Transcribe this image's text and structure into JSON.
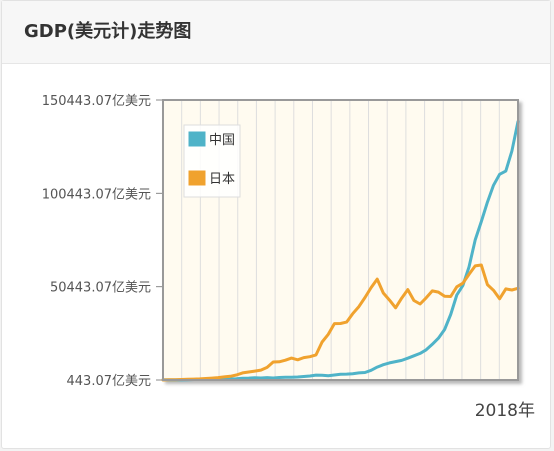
{
  "header": {
    "title": "GDP(美元计)走势图"
  },
  "chart_data": {
    "type": "line",
    "ylim": [
      443.07,
      150443.07
    ],
    "ytick_labels": [
      "150443.07亿美元",
      "100443.07亿美元",
      "50443.07亿美元",
      "443.07亿美元"
    ],
    "ytick_values": [
      150443.07,
      100443.07,
      50443.07,
      443.07
    ],
    "xtick_labels": [
      "2018年"
    ],
    "grid": true,
    "legend_position": "top-left",
    "x": [
      1960,
      1961,
      1962,
      1963,
      1964,
      1965,
      1966,
      1967,
      1968,
      1969,
      1970,
      1971,
      1972,
      1973,
      1974,
      1975,
      1976,
      1977,
      1978,
      1979,
      1980,
      1981,
      1982,
      1983,
      1984,
      1985,
      1986,
      1987,
      1988,
      1989,
      1990,
      1991,
      1992,
      1993,
      1994,
      1995,
      1996,
      1997,
      1998,
      1999,
      2000,
      2001,
      2002,
      2003,
      2004,
      2005,
      2006,
      2007,
      2008,
      2009,
      2010,
      2011,
      2012,
      2013,
      2014,
      2015,
      2016,
      2017,
      2018
    ],
    "series": [
      {
        "name": "中国",
        "color": "#4fb3c8",
        "values": [
          597,
          500,
          472,
          507,
          594,
          704,
          767,
          727,
          708,
          797,
          926,
          998,
          1136,
          1387,
          1442,
          1634,
          1539,
          1749,
          1495,
          1783,
          1911,
          1958,
          2050,
          2310,
          2597,
          3094,
          3008,
          2729,
          3124,
          3477,
          3609,
          3834,
          4269,
          4447,
          5643,
          7345,
          8637,
          9616,
          10290,
          10940,
          12110,
          13390,
          14710,
          16600,
          19550,
          22860,
          27520,
          35520,
          45980,
          51100,
          61000,
          75510,
          85320,
          95700,
          104750,
          110620,
          112330,
          123100,
          138940
        ]
      },
      {
        "name": "日本",
        "color": "#f0a22e",
        "values": [
          443,
          536,
          606,
          693,
          815,
          913,
          1050,
          1239,
          1466,
          1722,
          2126,
          2402,
          3123,
          4250,
          4716,
          5208,
          5770,
          7211,
          10060,
          10170,
          11050,
          12180,
          11270,
          12430,
          12950,
          13870,
          20790,
          24900,
          30660,
          30730,
          31480,
          35960,
          39770,
          44630,
          49960,
          54490,
          47060,
          43240,
          39140,
          44320,
          48880,
          43030,
          41150,
          44460,
          48150,
          47550,
          45300,
          45150,
          50380,
          52310,
          57000,
          61570,
          62030,
          51560,
          48500,
          43950,
          49220,
          48670,
          49550
        ]
      }
    ]
  }
}
